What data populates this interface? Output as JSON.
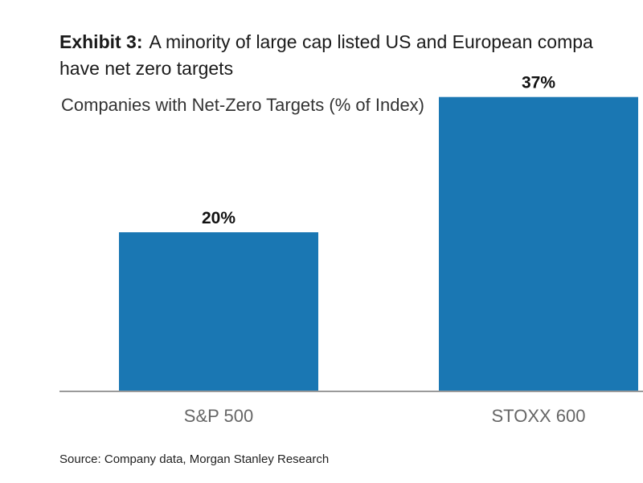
{
  "exhibit": {
    "label": "Exhibit 3:",
    "title_line1": "A minority of large cap listed US and European compa",
    "title_line2": "have net zero targets"
  },
  "source": "Source: Company data, Morgan Stanley Research",
  "colors": {
    "bar": "#1a77b3",
    "axis": "#9a9a9a",
    "tick_text": "#666666",
    "label_text": "#111111"
  },
  "chart_data": {
    "type": "bar",
    "title": "Companies with Net-Zero Targets (% of Index)",
    "categories": [
      "S&P 500",
      "STOXX 600"
    ],
    "values": [
      20,
      37
    ],
    "data_labels": [
      "20%",
      "37%"
    ],
    "xlabel": "",
    "ylabel": "",
    "ylim": [
      0,
      40
    ],
    "grid": false
  }
}
